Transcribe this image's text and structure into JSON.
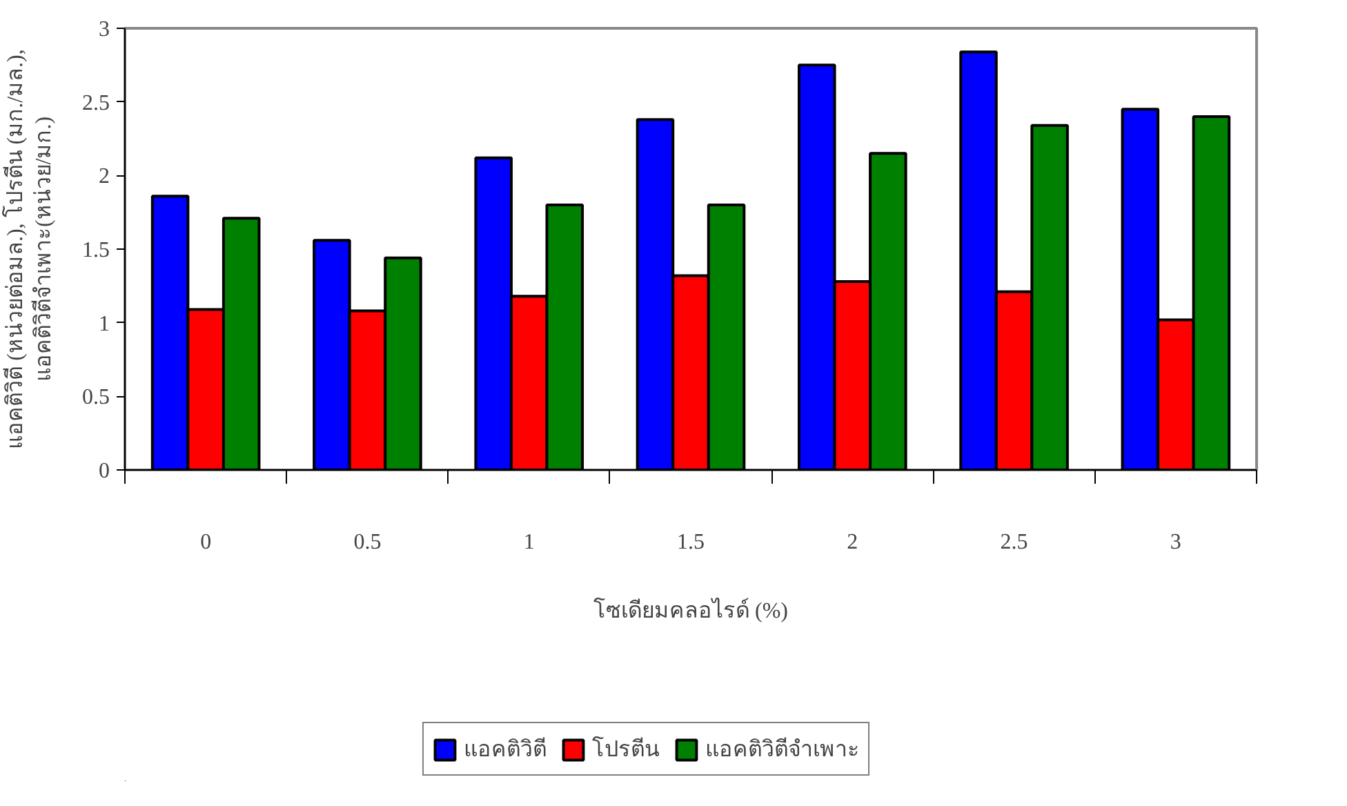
{
  "chart_data": {
    "type": "bar",
    "xlabel": "โซเดียมคลอไรด์ (%)",
    "ylabel": "แอคติวิตี (หน่วยต่อมล.), โปรตีน (มก./มล.),\nแอคติวิตีจำเพาะ(หน่วย/มก.)",
    "categories": [
      "0",
      "0.5",
      "1",
      "1.5",
      "2",
      "2.5",
      "3"
    ],
    "series": [
      {
        "name": "แอคติวิตี",
        "color": "#0000ff",
        "values": [
          1.86,
          1.56,
          2.12,
          2.38,
          2.75,
          2.84,
          2.45
        ]
      },
      {
        "name": "โปรตีน",
        "color": "#ff0000",
        "values": [
          1.09,
          1.08,
          1.18,
          1.32,
          1.28,
          1.21,
          1.02
        ]
      },
      {
        "name": "แอคติวิตีจำเพาะ",
        "color": "#008000",
        "values": [
          1.71,
          1.44,
          1.8,
          1.8,
          2.15,
          2.34,
          2.4
        ]
      }
    ],
    "ylim": [
      0,
      3
    ],
    "yticks": [
      0,
      0.5,
      1,
      1.5,
      2,
      2.5,
      3
    ],
    "grid": false,
    "legend": "bottom"
  }
}
